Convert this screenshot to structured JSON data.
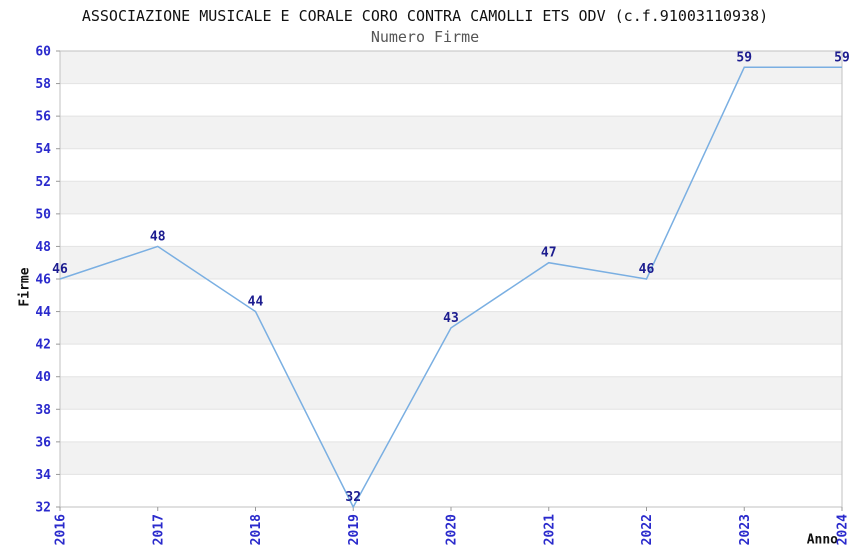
{
  "chart_data": {
    "type": "line",
    "title": "ASSOCIAZIONE MUSICALE E CORALE CORO CONTRA CAMOLLI ETS ODV (c.f.91003110938)",
    "subtitle": "Numero Firme",
    "xlabel": "Anno",
    "ylabel": "Firme",
    "x": [
      "2016",
      "2017",
      "2018",
      "2019",
      "2020",
      "2021",
      "2022",
      "2023",
      "2024"
    ],
    "series": [
      {
        "name": "Numero Firme",
        "values": [
          46,
          48,
          44,
          32,
          43,
          47,
          46,
          59,
          59
        ]
      }
    ],
    "ylim": [
      32,
      60
    ],
    "ytick_step": 2,
    "yticks": [
      32,
      34,
      36,
      38,
      40,
      42,
      44,
      46,
      48,
      50,
      52,
      54,
      56,
      58,
      60
    ],
    "grid": true,
    "legend_position": "none",
    "data_labels_shown": true,
    "colors": {
      "line": "#7aafe2",
      "tick_label": "#2a2acc",
      "data_label": "#1c1c8f",
      "band_gray": "#f2f2f2",
      "band_white": "#ffffff",
      "gridline": "#e3e3e3",
      "border": "#c2c2c2",
      "tick_mark": "#999999",
      "title": "#111111",
      "subtitle": "#555555",
      "axis_label": "#111111"
    }
  }
}
